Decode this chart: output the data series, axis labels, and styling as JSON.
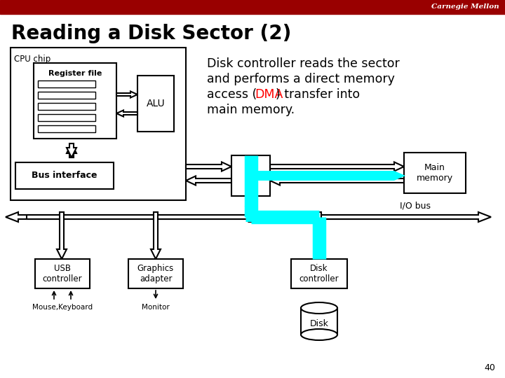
{
  "title": "Reading a Disk Sector (2)",
  "carnegie_mellon_text": "Carnegie Mellon",
  "background_color": "#ffffff",
  "header_bar_color": "#990000",
  "header_text_color": "#ffffff",
  "title_color": "#000000",
  "page_number": "40",
  "dma_color": "#FF0000",
  "cyan_color": "#00FFFF",
  "labels": {
    "cpu_chip": "CPU chip",
    "register_file": "Register file",
    "alu": "ALU",
    "bus_interface": "Bus interface",
    "main_memory": "Main\nmemory",
    "io_bus": "I/O bus",
    "usb_controller": "USB\ncontroller",
    "graphics_adapter": "Graphics\nadapter",
    "disk_controller": "Disk\ncontroller",
    "mouse_keyboard": "Mouse,Keyboard",
    "monitor": "Monitor",
    "disk": "Disk"
  },
  "desc_line1": "Disk controller reads the sector",
  "desc_line2": "and performs a direct memory",
  "desc_line3_pre": "access (",
  "desc_line3_dma": "DMA",
  "desc_line3_post": ") transfer into",
  "desc_line4": "main memory."
}
